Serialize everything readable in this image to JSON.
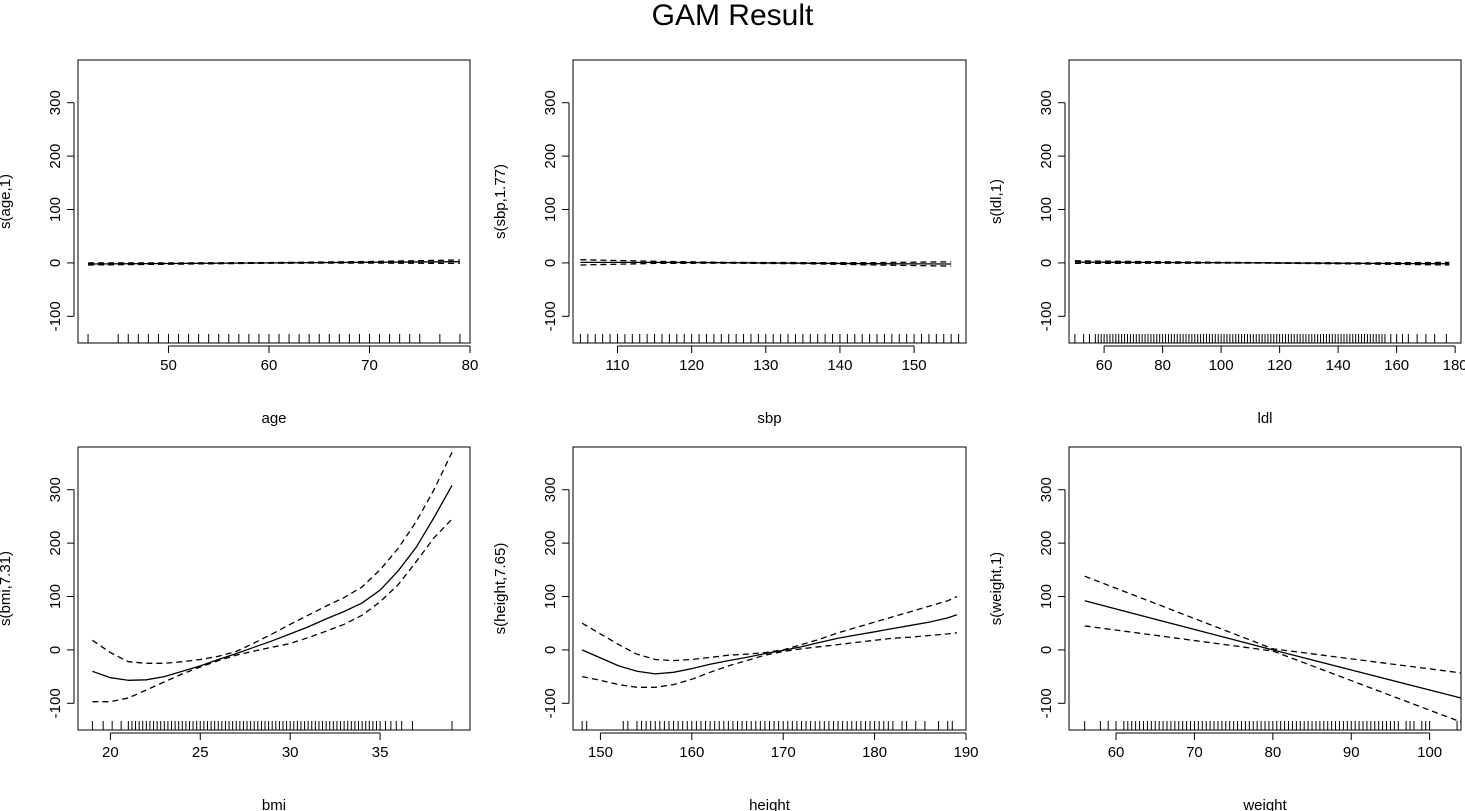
{
  "title": "GAM Result",
  "chart_data": [
    {
      "type": "line",
      "xlabel": "age",
      "ylabel": "s(age,1)",
      "xlim": [
        41,
        80
      ],
      "ylim": [
        -150,
        380
      ],
      "xticks": [
        50,
        60,
        70,
        80
      ],
      "yticks": [
        -100,
        0,
        100,
        200,
        300
      ],
      "x": [
        42,
        50,
        60,
        70,
        79
      ],
      "fit": [
        -2,
        -1.2,
        0,
        1.2,
        2.2
      ],
      "lower": [
        -4,
        -2.5,
        -0.5,
        -0.3,
        -1
      ],
      "upper": [
        0,
        0.1,
        0.5,
        2.7,
        5.5
      ],
      "rug": [
        42,
        45,
        46,
        47,
        48,
        49,
        50,
        51,
        52,
        53,
        54,
        55,
        56,
        57,
        58,
        59,
        60,
        61,
        62,
        63,
        64,
        65,
        66,
        67,
        68,
        69,
        70,
        71,
        72,
        73,
        74,
        75,
        77,
        79
      ]
    },
    {
      "type": "line",
      "xlabel": "sbp",
      "ylabel": "s(sbp,1.77)",
      "xlim": [
        104,
        157
      ],
      "ylim": [
        -150,
        380
      ],
      "xticks": [
        110,
        120,
        130,
        140,
        150
      ],
      "yticks": [
        -100,
        0,
        100,
        200,
        300
      ],
      "x": [
        105,
        115,
        125,
        135,
        145,
        155
      ],
      "fit": [
        1,
        1,
        0.3,
        -0.5,
        -1.5,
        -2
      ],
      "lower": [
        -4,
        -1,
        -0.5,
        -1.5,
        -4,
        -6
      ],
      "upper": [
        6,
        3,
        1,
        0.5,
        0.5,
        2
      ],
      "rug": [
        105,
        106,
        107,
        108,
        109,
        110,
        111,
        112,
        113,
        114,
        115,
        116,
        117,
        118,
        119,
        120,
        121,
        122,
        123,
        124,
        125,
        126,
        127,
        128,
        129,
        130,
        131,
        132,
        133,
        134,
        135,
        136,
        137,
        138,
        139,
        140,
        141,
        142,
        143,
        144,
        145,
        146,
        147,
        148,
        149,
        150,
        151,
        152,
        153,
        154,
        155,
        156
      ]
    },
    {
      "type": "line",
      "xlabel": "ldl",
      "ylabel": "s(ldl,1)",
      "xlim": [
        48,
        182
      ],
      "ylim": [
        -150,
        380
      ],
      "xticks": [
        60,
        80,
        100,
        120,
        140,
        160,
        180
      ],
      "yticks": [
        -100,
        0,
        100,
        200,
        300
      ],
      "x": [
        50,
        80,
        115,
        150,
        178
      ],
      "fit": [
        1.5,
        0.8,
        0,
        -1,
        -1.5
      ],
      "lower": [
        -1,
        -0.5,
        -0.3,
        -2,
        -4
      ],
      "upper": [
        4,
        2,
        0.3,
        0,
        1
      ],
      "rug": [
        50,
        53,
        55,
        57,
        58,
        59,
        60,
        61,
        62,
        63,
        64,
        65,
        66,
        67,
        68,
        69,
        70,
        71,
        72,
        73,
        74,
        75,
        76,
        77,
        78,
        79,
        80,
        81,
        82,
        83,
        84,
        85,
        86,
        87,
        88,
        89,
        90,
        91,
        92,
        93,
        94,
        95,
        96,
        97,
        98,
        99,
        100,
        101,
        102,
        103,
        104,
        105,
        106,
        107,
        108,
        109,
        110,
        111,
        112,
        113,
        114,
        115,
        116,
        117,
        118,
        119,
        120,
        121,
        122,
        123,
        124,
        125,
        126,
        127,
        128,
        129,
        130,
        131,
        132,
        133,
        134,
        135,
        136,
        137,
        138,
        139,
        140,
        141,
        142,
        143,
        144,
        145,
        146,
        147,
        148,
        149,
        150,
        151,
        152,
        153,
        154,
        155,
        156,
        158,
        160,
        162,
        164,
        167,
        170,
        173,
        177
      ]
    },
    {
      "type": "line",
      "xlabel": "bmi",
      "ylabel": "s(bmi,7.31)",
      "xlim": [
        18.2,
        40
      ],
      "ylim": [
        -150,
        380
      ],
      "xticks": [
        20,
        25,
        30,
        35
      ],
      "yticks": [
        -100,
        0,
        100,
        200,
        300
      ],
      "x": [
        19,
        20,
        21,
        22,
        23,
        24,
        25,
        26,
        27,
        28,
        29,
        30,
        31,
        32,
        33,
        34,
        35,
        36,
        37,
        38,
        39
      ],
      "fit": [
        -40,
        -52,
        -57,
        -56,
        -50,
        -40,
        -30,
        -18,
        -7,
        5,
        17,
        30,
        43,
        58,
        72,
        88,
        112,
        148,
        192,
        248,
        308
      ],
      "lower": [
        -97,
        -97,
        -90,
        -75,
        -60,
        -45,
        -32,
        -20,
        -10,
        -2,
        5,
        12,
        23,
        35,
        48,
        65,
        90,
        122,
        165,
        210,
        245
      ],
      "upper": [
        18,
        -5,
        -22,
        -25,
        -25,
        -22,
        -18,
        -12,
        -3,
        13,
        30,
        48,
        65,
        82,
        98,
        118,
        150,
        190,
        240,
        300,
        370
      ],
      "rug": [
        19,
        19.6,
        20.1,
        20.6,
        21,
        21.2,
        21.4,
        21.6,
        21.8,
        22,
        22.2,
        22.4,
        22.6,
        22.8,
        23,
        23.2,
        23.4,
        23.6,
        23.8,
        24,
        24.2,
        24.4,
        24.6,
        24.8,
        25,
        25.2,
        25.4,
        25.6,
        25.8,
        26,
        26.2,
        26.4,
        26.6,
        26.8,
        27,
        27.2,
        27.4,
        27.6,
        27.8,
        28,
        28.2,
        28.4,
        28.6,
        28.8,
        29,
        29.2,
        29.4,
        29.6,
        29.8,
        30,
        30.2,
        30.4,
        30.6,
        30.8,
        31,
        31.2,
        31.4,
        31.6,
        31.8,
        32,
        32.2,
        32.4,
        32.6,
        32.8,
        33,
        33.2,
        33.4,
        33.6,
        33.8,
        34,
        34.2,
        34.4,
        34.6,
        34.8,
        35,
        35.3,
        35.6,
        35.9,
        36.2,
        36.8,
        39
      ]
    },
    {
      "type": "line",
      "xlabel": "height",
      "ylabel": "s(height,7.65)",
      "xlim": [
        147,
        190
      ],
      "ylim": [
        -150,
        380
      ],
      "xticks": [
        150,
        160,
        170,
        180,
        190
      ],
      "yticks": [
        -100,
        0,
        100,
        200,
        300
      ],
      "x": [
        148,
        150,
        152,
        154,
        156,
        158,
        160,
        162,
        164,
        166,
        168,
        170,
        172,
        174,
        176,
        178,
        180,
        182,
        184,
        186,
        188,
        189
      ],
      "fit": [
        0,
        -15,
        -30,
        -40,
        -45,
        -42,
        -35,
        -27,
        -20,
        -14,
        -7,
        -1,
        6,
        14,
        22,
        28,
        34,
        40,
        46,
        52,
        60,
        66
      ],
      "lower": [
        -50,
        -57,
        -65,
        -70,
        -70,
        -65,
        -55,
        -42,
        -30,
        -20,
        -10,
        -3,
        2,
        6,
        10,
        14,
        18,
        22,
        24,
        27,
        30,
        32
      ],
      "upper": [
        50,
        30,
        10,
        -8,
        -18,
        -20,
        -18,
        -14,
        -10,
        -8,
        -5,
        0,
        10,
        20,
        32,
        42,
        52,
        62,
        72,
        82,
        92,
        100
      ],
      "rug": [
        148,
        148.5,
        152.5,
        153,
        154,
        154.5,
        155,
        155.5,
        156,
        156.5,
        157,
        157.5,
        158,
        158.5,
        159,
        159.5,
        160,
        160.5,
        161,
        161.5,
        162,
        162.5,
        163,
        163.5,
        164,
        164.5,
        165,
        165.5,
        166,
        166.5,
        167,
        167.5,
        168,
        168.5,
        169,
        169.5,
        170,
        170.5,
        171,
        171.5,
        172,
        172.5,
        173,
        173.5,
        174,
        174.5,
        175,
        175.5,
        176,
        176.5,
        177,
        177.5,
        178,
        178.5,
        179,
        179.5,
        180,
        180.5,
        181,
        181.5,
        182,
        183,
        183.5,
        184.5,
        185.5,
        187,
        188,
        188.5
      ]
    },
    {
      "type": "line",
      "xlabel": "weight",
      "ylabel": "s(weight,1)",
      "xlim": [
        54,
        104
      ],
      "ylim": [
        -150,
        380
      ],
      "xticks": [
        60,
        70,
        80,
        90,
        100
      ],
      "yticks": [
        -100,
        0,
        100,
        200,
        300
      ],
      "x": [
        56,
        80,
        104
      ],
      "fit": [
        92,
        0,
        -90
      ],
      "lower": [
        45,
        -2,
        -135
      ],
      "upper": [
        138,
        2,
        -43
      ],
      "rug": [
        56,
        58,
        59,
        60,
        61,
        61.5,
        62,
        62.5,
        63,
        63.5,
        64,
        64.5,
        65,
        65.5,
        66,
        66.5,
        67,
        67.5,
        68,
        68.5,
        69,
        69.5,
        70,
        70.5,
        71,
        71.5,
        72,
        72.5,
        73,
        73.5,
        74,
        74.5,
        75,
        75.5,
        76,
        76.5,
        77,
        77.5,
        78,
        78.5,
        79,
        79.5,
        80,
        80.5,
        81,
        81.5,
        82,
        82.5,
        83,
        83.5,
        84,
        84.5,
        85,
        85.5,
        86,
        86.5,
        87,
        87.5,
        88,
        88.5,
        89,
        89.5,
        90,
        90.5,
        91,
        91.5,
        92,
        92.5,
        93,
        93.5,
        94,
        94.5,
        95,
        95.5,
        96,
        97,
        97.5,
        98,
        99,
        99.5,
        100,
        103.5
      ]
    }
  ]
}
